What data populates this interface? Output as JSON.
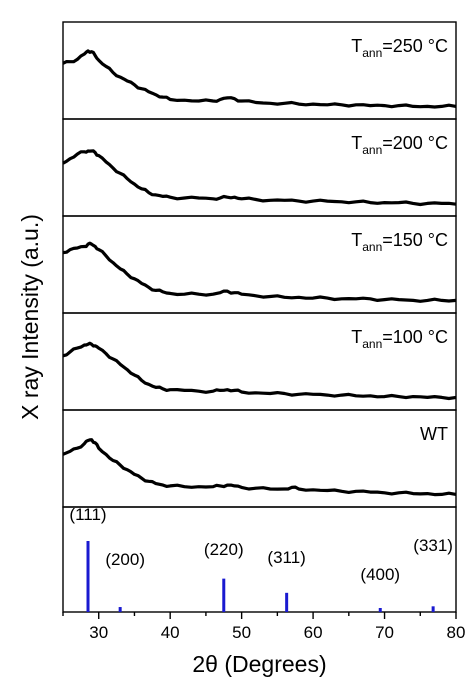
{
  "chart_data": {
    "type": "line",
    "xlabel": "2θ (Degrees)",
    "ylabel": "X ray Intensity (a.u.)",
    "xlim": [
      25,
      80
    ],
    "xticks": [
      30,
      40,
      50,
      60,
      70,
      80
    ],
    "grid": false,
    "series": [
      {
        "label_main": "T",
        "label_sub": "ann",
        "label_rest": "=250 °C",
        "x": [
          25,
          26,
          27,
          28,
          28.5,
          29,
          29.5,
          30,
          31,
          32,
          33,
          34,
          35,
          36,
          37,
          38,
          39,
          40,
          42,
          44,
          46,
          47,
          48,
          49,
          50,
          52,
          54,
          56,
          58,
          60,
          62,
          64,
          66,
          68,
          70,
          72,
          74,
          76,
          78,
          80
        ],
        "y": [
          0.62,
          0.64,
          0.67,
          0.74,
          0.78,
          0.77,
          0.72,
          0.66,
          0.58,
          0.5,
          0.44,
          0.39,
          0.34,
          0.29,
          0.25,
          0.21,
          0.18,
          0.15,
          0.14,
          0.13,
          0.13,
          0.15,
          0.17,
          0.16,
          0.13,
          0.11,
          0.1,
          0.1,
          0.09,
          0.09,
          0.08,
          0.08,
          0.08,
          0.07,
          0.07,
          0.07,
          0.06,
          0.06,
          0.06,
          0.06
        ]
      },
      {
        "label_main": "T",
        "label_sub": "ann",
        "label_rest": "=200 °C",
        "x": [
          25,
          26,
          27,
          28,
          28.5,
          29,
          29.5,
          30,
          31,
          32,
          33,
          34,
          35,
          36,
          37,
          38,
          39,
          40,
          42,
          44,
          46,
          47,
          48,
          49,
          50,
          52,
          54,
          56,
          58,
          60,
          62,
          64,
          66,
          68,
          70,
          72,
          74,
          76,
          78,
          80
        ],
        "y": [
          0.58,
          0.64,
          0.7,
          0.73,
          0.74,
          0.74,
          0.72,
          0.68,
          0.6,
          0.52,
          0.45,
          0.38,
          0.31,
          0.25,
          0.2,
          0.17,
          0.15,
          0.14,
          0.13,
          0.13,
          0.12,
          0.13,
          0.14,
          0.14,
          0.12,
          0.11,
          0.1,
          0.1,
          0.09,
          0.09,
          0.09,
          0.08,
          0.08,
          0.07,
          0.07,
          0.07,
          0.06,
          0.06,
          0.06,
          0.05
        ]
      },
      {
        "label_main": "T",
        "label_sub": "ann",
        "label_rest": "=150 °C",
        "x": [
          25,
          26,
          27,
          28,
          28.5,
          29,
          29.5,
          30,
          31,
          32,
          33,
          34,
          35,
          36,
          37,
          38,
          39,
          40,
          42,
          44,
          46,
          47,
          48,
          49,
          50,
          52,
          54,
          56,
          58,
          60,
          62,
          64,
          66,
          68,
          70,
          72,
          74,
          76,
          78,
          80
        ],
        "y": [
          0.68,
          0.72,
          0.74,
          0.76,
          0.79,
          0.79,
          0.76,
          0.72,
          0.64,
          0.55,
          0.47,
          0.4,
          0.34,
          0.28,
          0.23,
          0.19,
          0.17,
          0.15,
          0.14,
          0.14,
          0.14,
          0.16,
          0.18,
          0.16,
          0.14,
          0.12,
          0.11,
          0.1,
          0.1,
          0.09,
          0.09,
          0.08,
          0.08,
          0.08,
          0.07,
          0.07,
          0.06,
          0.06,
          0.06,
          0.06
        ]
      },
      {
        "label_main": "T",
        "label_sub": "ann",
        "label_rest": "=100 °C",
        "x": [
          25,
          26,
          27,
          28,
          28.5,
          29,
          29.5,
          30,
          31,
          32,
          33,
          34,
          35,
          36,
          37,
          38,
          39,
          40,
          42,
          44,
          46,
          47,
          48,
          49,
          50,
          52,
          54,
          56,
          58,
          60,
          62,
          64,
          66,
          68,
          70,
          72,
          74,
          76,
          78,
          80
        ],
        "y": [
          0.6,
          0.65,
          0.7,
          0.74,
          0.75,
          0.75,
          0.73,
          0.7,
          0.63,
          0.56,
          0.49,
          0.42,
          0.35,
          0.28,
          0.23,
          0.19,
          0.17,
          0.16,
          0.15,
          0.14,
          0.14,
          0.15,
          0.16,
          0.15,
          0.13,
          0.12,
          0.11,
          0.11,
          0.1,
          0.1,
          0.09,
          0.09,
          0.08,
          0.08,
          0.07,
          0.07,
          0.07,
          0.06,
          0.06,
          0.06
        ]
      },
      {
        "label_main": "WT",
        "label_sub": "",
        "label_rest": "",
        "x": [
          25,
          26,
          27,
          28,
          28.5,
          29,
          29.5,
          30,
          31,
          32,
          33,
          34,
          35,
          36,
          37,
          38,
          39,
          40,
          42,
          44,
          46,
          47,
          48,
          49,
          50,
          52,
          54,
          56,
          57,
          58,
          60,
          62,
          64,
          66,
          68,
          70,
          72,
          74,
          76,
          78,
          80
        ],
        "y": [
          0.58,
          0.62,
          0.66,
          0.72,
          0.76,
          0.77,
          0.73,
          0.66,
          0.58,
          0.5,
          0.44,
          0.38,
          0.32,
          0.27,
          0.23,
          0.2,
          0.18,
          0.17,
          0.16,
          0.16,
          0.16,
          0.17,
          0.18,
          0.17,
          0.15,
          0.14,
          0.13,
          0.13,
          0.15,
          0.13,
          0.12,
          0.11,
          0.1,
          0.1,
          0.09,
          0.08,
          0.08,
          0.07,
          0.07,
          0.06,
          0.06
        ]
      }
    ],
    "reference": {
      "color": "#1a1ad0",
      "peaks": [
        {
          "label": "(111)",
          "x": 28.5,
          "height": 1.0
        },
        {
          "label": "(200)",
          "x": 33.0,
          "height": 0.07
        },
        {
          "label": "(220)",
          "x": 47.5,
          "height": 0.47
        },
        {
          "label": "(311)",
          "x": 56.3,
          "height": 0.27
        },
        {
          "label": "(400)",
          "x": 69.4,
          "height": 0.05
        },
        {
          "label": "(331)",
          "x": 76.8,
          "height": 0.08
        }
      ]
    }
  }
}
